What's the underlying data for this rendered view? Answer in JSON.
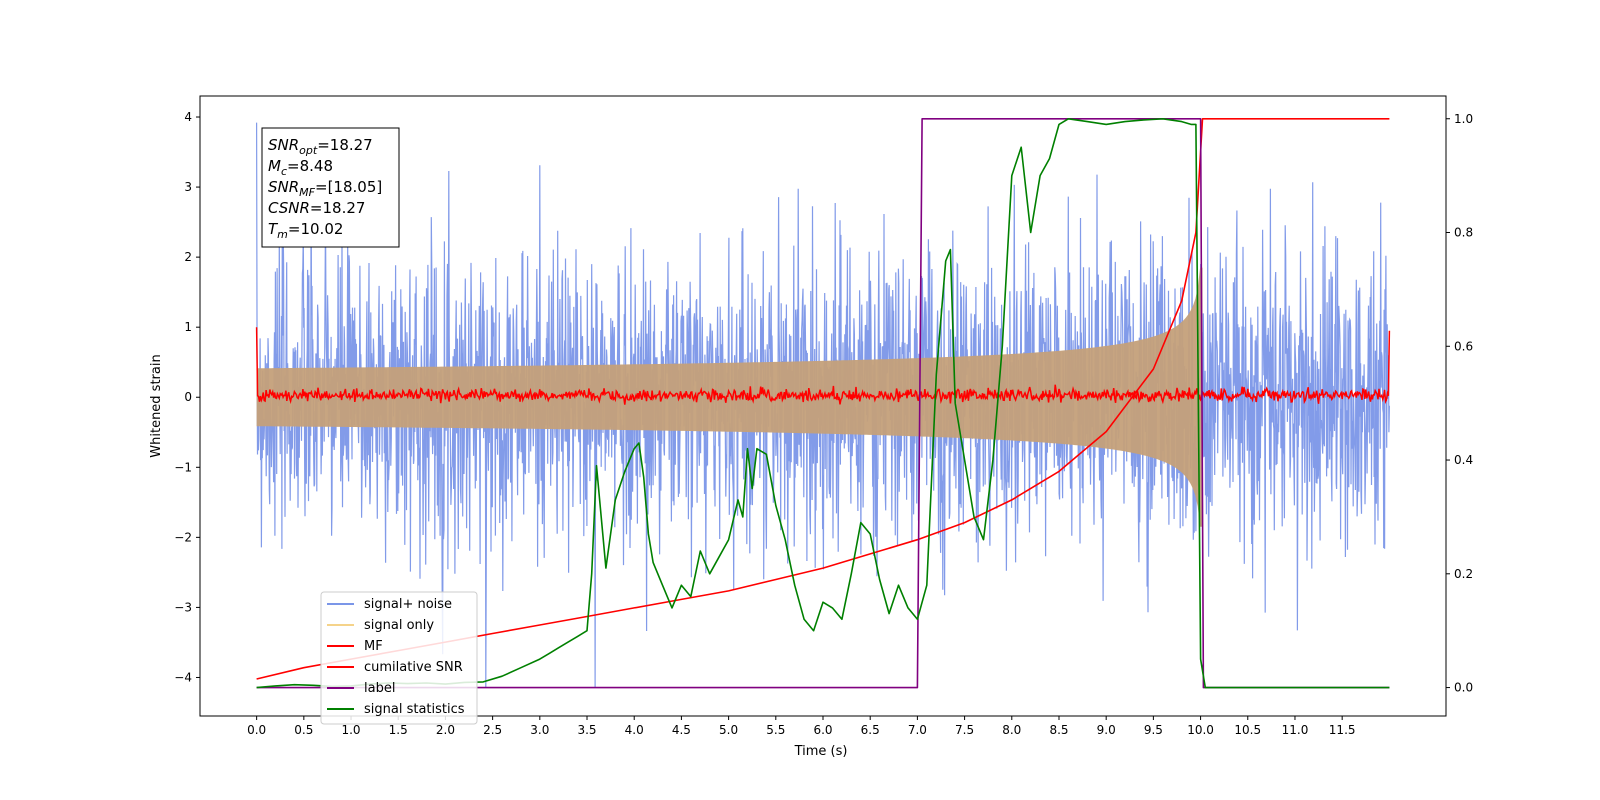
{
  "chart_data": {
    "type": "line",
    "xlabel": "Time (s)",
    "ylabel": "Whitened strain",
    "xlim": [
      -0.6,
      12.6
    ],
    "ylim": [
      -4.55,
      4.3
    ],
    "ylim_right": [
      -0.05,
      1.04
    ],
    "x_ticks": [
      "0.0",
      "0.5",
      "1.0",
      "1.5",
      "2.0",
      "2.5",
      "3.0",
      "3.5",
      "4.0",
      "4.5",
      "5.0",
      "5.5",
      "6.0",
      "6.5",
      "7.0",
      "7.5",
      "8.0",
      "8.5",
      "9.0",
      "9.5",
      "10.0",
      "10.5",
      "11.0",
      "11.5"
    ],
    "y_ticks": [
      "4",
      "3",
      "2",
      "1",
      "0",
      "−1",
      "−2",
      "−3",
      "−4"
    ],
    "y_right_ticks": [
      "0.0",
      "0.2",
      "0.4",
      "0.6",
      "0.8",
      "1.0"
    ],
    "annotation": {
      "lines": [
        {
          "sym": "SNR",
          "sub": "opt",
          "value": "=18.27"
        },
        {
          "sym": "M",
          "sub": "c",
          "value": "=8.48"
        },
        {
          "sym": "SNR",
          "sub": "MF",
          "value": "=[18.05]"
        },
        {
          "sym": "CSNR",
          "sub": "",
          "value": "=18.27"
        },
        {
          "sym": "T",
          "sub": "m",
          "value": "=10.02"
        }
      ]
    },
    "legend": {
      "placement": "lower-left",
      "entries": [
        {
          "name": "signal+ noise",
          "color": "#7b96e8"
        },
        {
          "name": "signal only",
          "color": "#f5d38a"
        },
        {
          "name": "MF",
          "color": "#ff0000"
        },
        {
          "name": "cumilative SNR",
          "color": "#ff0000"
        },
        {
          "name": "label",
          "color": "#800080"
        },
        {
          "name": "signal statistics",
          "color": "#008000"
        }
      ]
    },
    "series": [
      {
        "name": "signal+ noise",
        "axis": "left",
        "color": "#7b96e8",
        "t_range": [
          0,
          12
        ],
        "noise_sigma": 1.05,
        "peak_max": 3.92,
        "peak_min": -4.15
      },
      {
        "name": "signal only",
        "axis": "left",
        "color": "#c4a07a",
        "chirp_end": 10.02,
        "amplitude_at_end": 1.85
      },
      {
        "name": "MF",
        "axis": "left",
        "color": "#ff0000",
        "baseline": 0.03,
        "edge_values": [
          1.0,
          0.95
        ]
      },
      {
        "name": "cumilative SNR",
        "axis": "right",
        "color": "#ff0000",
        "x": [
          0.0,
          0.5,
          1.0,
          1.5,
          2.0,
          2.5,
          3.0,
          3.5,
          4.0,
          4.5,
          5.0,
          5.5,
          6.0,
          6.5,
          7.0,
          7.5,
          8.0,
          8.5,
          9.0,
          9.5,
          9.8,
          9.95,
          10.02,
          12.0
        ],
        "y": [
          0.015,
          0.035,
          0.05,
          0.065,
          0.08,
          0.095,
          0.11,
          0.125,
          0.14,
          0.155,
          0.17,
          0.19,
          0.21,
          0.235,
          0.26,
          0.29,
          0.33,
          0.38,
          0.45,
          0.56,
          0.68,
          0.8,
          1.0,
          1.0
        ]
      },
      {
        "name": "label",
        "axis": "right",
        "color": "#800080",
        "x": [
          0.0,
          7.0,
          7.05,
          10.0,
          10.03,
          12.0
        ],
        "y": [
          0.0,
          0.0,
          1.0,
          1.0,
          0.0,
          0.0
        ]
      },
      {
        "name": "signal statistics",
        "axis": "right",
        "color": "#008000",
        "x": [
          0.0,
          0.2,
          0.4,
          0.6,
          0.8,
          1.0,
          1.2,
          1.4,
          1.6,
          1.8,
          2.0,
          2.2,
          2.4,
          2.6,
          2.8,
          3.0,
          3.1,
          3.2,
          3.3,
          3.4,
          3.5,
          3.55,
          3.6,
          3.65,
          3.7,
          3.8,
          3.9,
          4.0,
          4.05,
          4.1,
          4.15,
          4.2,
          4.3,
          4.4,
          4.5,
          4.6,
          4.7,
          4.8,
          4.9,
          5.0,
          5.1,
          5.15,
          5.2,
          5.25,
          5.3,
          5.4,
          5.5,
          5.6,
          5.7,
          5.8,
          5.9,
          6.0,
          6.1,
          6.2,
          6.3,
          6.4,
          6.5,
          6.6,
          6.7,
          6.8,
          6.9,
          7.0,
          7.1,
          7.2,
          7.3,
          7.35,
          7.4,
          7.5,
          7.6,
          7.7,
          7.8,
          7.9,
          8.0,
          8.1,
          8.2,
          8.3,
          8.4,
          8.5,
          8.6,
          8.8,
          9.0,
          9.2,
          9.4,
          9.6,
          9.8,
          9.9,
          9.95,
          10.0,
          10.05,
          10.1,
          10.2,
          11.0,
          12.0
        ],
        "y": [
          0.0,
          0.003,
          0.005,
          0.004,
          0.002,
          0.003,
          0.006,
          0.008,
          0.007,
          0.008,
          0.006,
          0.009,
          0.01,
          0.02,
          0.035,
          0.05,
          0.06,
          0.07,
          0.08,
          0.09,
          0.1,
          0.2,
          0.39,
          0.3,
          0.21,
          0.33,
          0.38,
          0.42,
          0.43,
          0.37,
          0.27,
          0.22,
          0.18,
          0.14,
          0.18,
          0.16,
          0.24,
          0.2,
          0.23,
          0.26,
          0.33,
          0.3,
          0.42,
          0.35,
          0.42,
          0.41,
          0.32,
          0.26,
          0.18,
          0.12,
          0.1,
          0.15,
          0.14,
          0.12,
          0.2,
          0.29,
          0.27,
          0.19,
          0.13,
          0.18,
          0.14,
          0.12,
          0.18,
          0.55,
          0.75,
          0.77,
          0.5,
          0.4,
          0.3,
          0.26,
          0.4,
          0.6,
          0.9,
          0.95,
          0.8,
          0.9,
          0.93,
          0.99,
          1.0,
          0.995,
          0.99,
          0.995,
          0.998,
          1.0,
          0.995,
          0.99,
          0.99,
          0.05,
          0.0,
          0.0,
          0.0,
          0.0,
          0.0
        ]
      }
    ]
  }
}
